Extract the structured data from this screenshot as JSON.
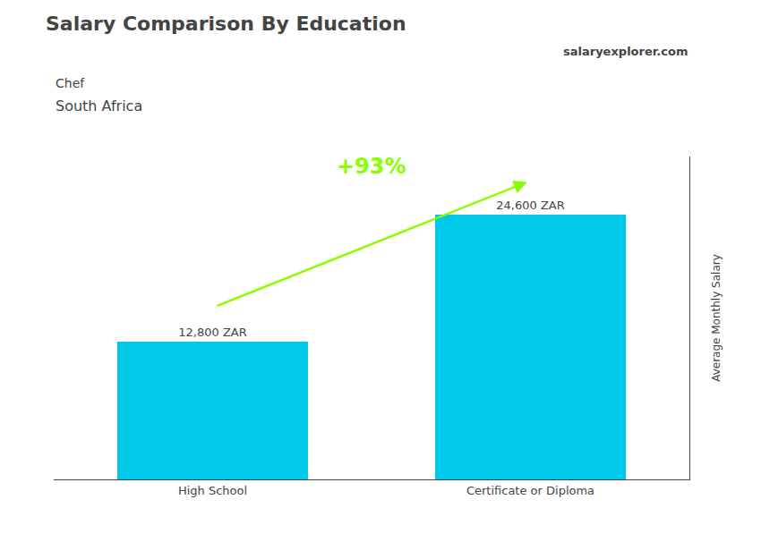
{
  "chart_data": {
    "type": "bar",
    "title": "Salary Comparison By Education",
    "subtitle": [
      "Chef",
      "South Africa"
    ],
    "ylabel": "Average Monthly Salary",
    "categories": [
      "High School",
      "Certificate or Diploma"
    ],
    "values": [
      12800,
      24600
    ],
    "value_labels": [
      "12,800 ZAR",
      "24,600 ZAR"
    ],
    "data_labels": true,
    "color": "#00C8E8",
    "ylim": [
      0,
      30000
    ],
    "grid": false,
    "tick_labels": "x",
    "annotations": [
      {
        "text": "+93%",
        "from": "High School",
        "to": "Certificate or Diploma",
        "color": "#88FF00"
      },
      {
        "text": [
          "salary",
          "explorer.com"
        ]
      }
    ]
  }
}
